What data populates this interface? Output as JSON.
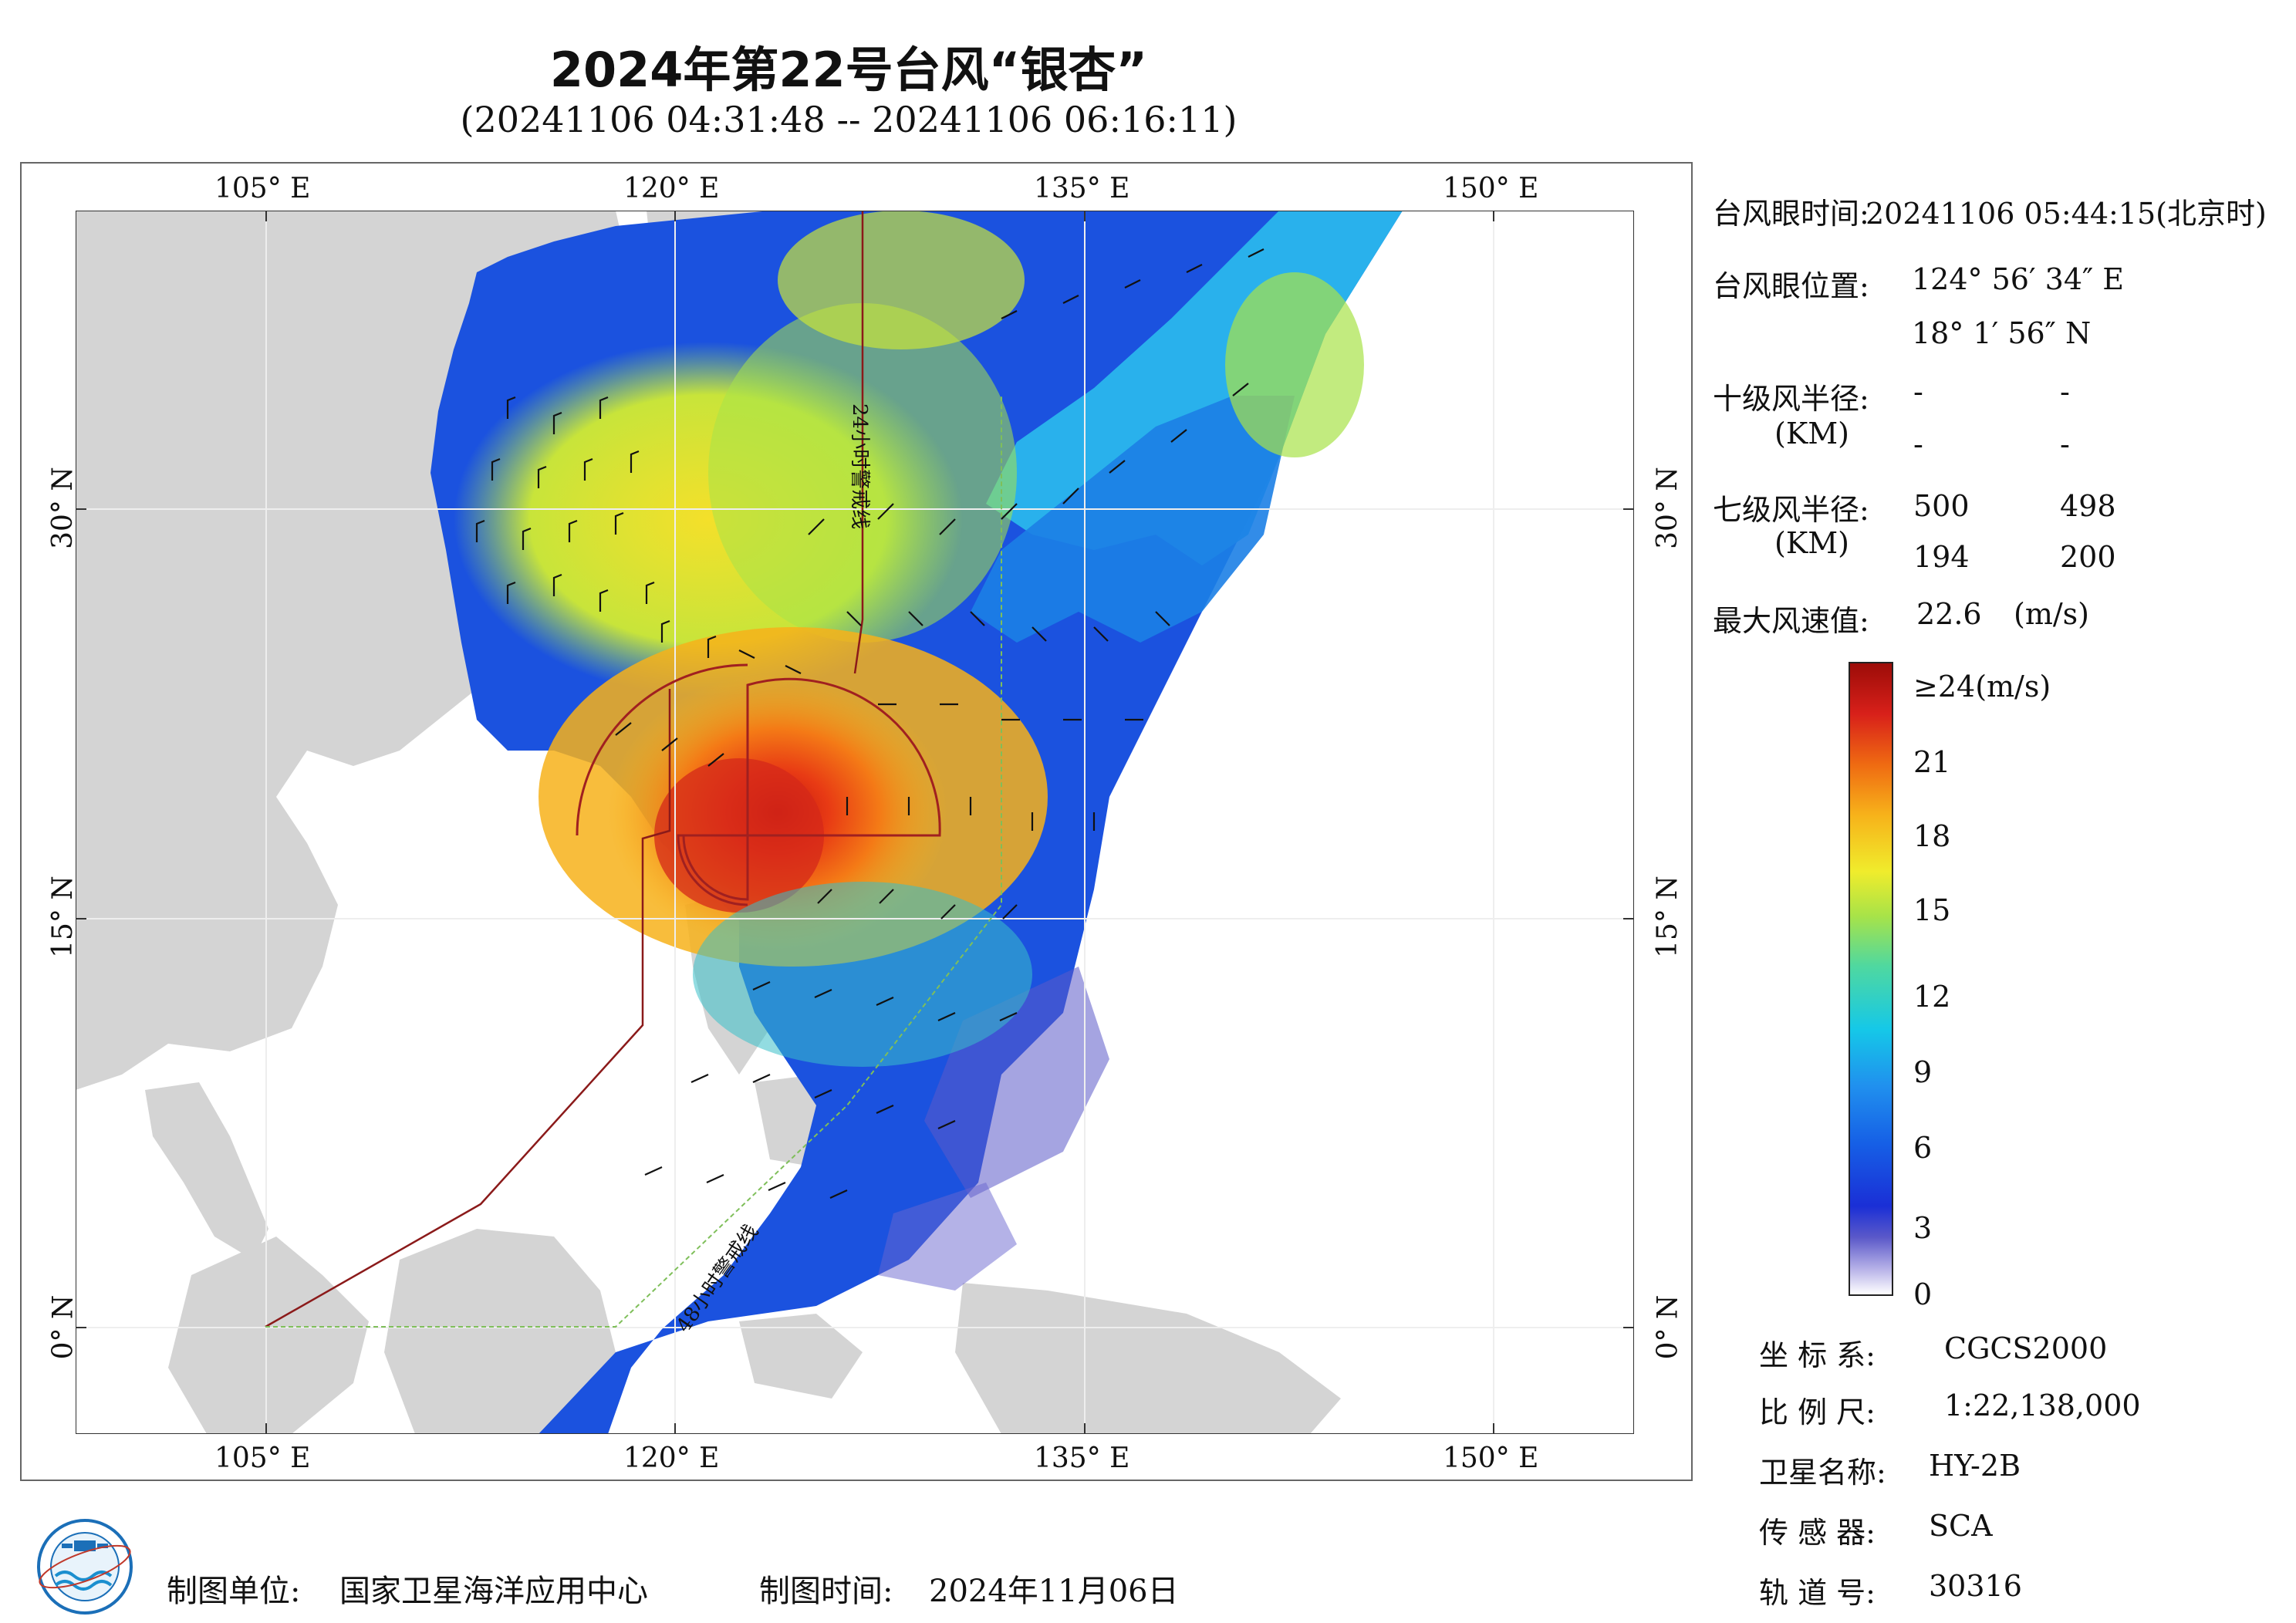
{
  "title": "2024年第22号台风“银杏”",
  "subtitle": "(20241106 04:31:48 -- 20241106 06:16:11)",
  "map": {
    "lon_labels": [
      "105° E",
      "120° E",
      "135° E",
      "150° E"
    ],
    "lat_labels": [
      "30° N",
      "15° N",
      "0° N"
    ],
    "warning_24h_label": "24小时警戒线",
    "warning_48h_label": "48小时警戒线",
    "colors": {
      "land": "#d4d4d4",
      "ocean": "#ffffff",
      "warning_24h": "#8b1a1a",
      "warning_48h": "#7fbf5a",
      "radius_circle": "#a02020"
    }
  },
  "info": {
    "eye_time_label": "台风眼时间:",
    "eye_time_value": "20241106 05:44:15(北京时)",
    "eye_pos_label": "台风眼位置:",
    "eye_lon": "124° 56′ 34″ E",
    "eye_lat": "18° 1′ 56″ N",
    "r10_label": "十级风半径:",
    "r10_unit": "(KM)",
    "r10_values": [
      "-",
      "-",
      "-",
      "-"
    ],
    "r7_label": "七级风半径:",
    "r7_unit": "(KM)",
    "r7_values": [
      "500",
      "498",
      "194",
      "200"
    ],
    "max_wind_label": "最大风速值:",
    "max_wind_value": "22.6",
    "max_wind_unit": "(m/s)"
  },
  "colorbar": {
    "labels": [
      "≥24(m/s)",
      "21",
      "18",
      "15",
      "12",
      "9",
      "6",
      "3",
      "0"
    ],
    "values": [
      24,
      21,
      18,
      15,
      12,
      9,
      6,
      3,
      0
    ]
  },
  "meta": {
    "crs_label": "坐 标 系:",
    "crs_value": "CGCS2000",
    "scale_label": "比 例 尺:",
    "scale_value": "1:22,138,000",
    "satellite_label": "卫星名称:",
    "satellite_value": "HY-2B",
    "sensor_label": "传 感 器:",
    "sensor_value": "SCA",
    "orbit_label": "轨 道 号:",
    "orbit_value": "30316"
  },
  "footer": {
    "producer_label": "制图单位:",
    "producer_value": "国家卫星海洋应用中心",
    "made_time_label": "制图时间:",
    "made_time_value": "2024年11月06日"
  }
}
